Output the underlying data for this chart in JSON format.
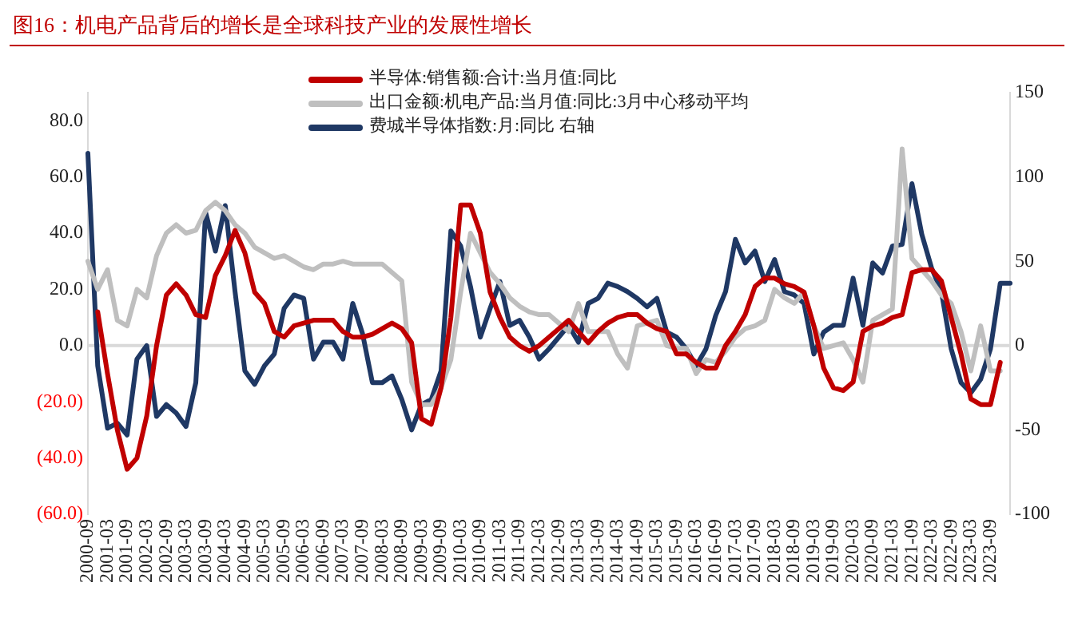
{
  "chart_data": {
    "type": "line",
    "title": "图16：机电产品背后的增长是全球科技产业的发展性增长",
    "categories": [
      "2000-09",
      null,
      "2001-03",
      null,
      "2001-09",
      null,
      "2002-03",
      null,
      "2002-09",
      null,
      "2003-03",
      null,
      "2003-09",
      null,
      "2004-03",
      null,
      "2004-09",
      null,
      "2005-03",
      null,
      "2005-09",
      null,
      "2006-03",
      null,
      "2006-09",
      null,
      "2007-03",
      null,
      "2007-09",
      null,
      "2008-03",
      null,
      "2008-09",
      null,
      "2009-03",
      null,
      "2009-09",
      null,
      "2010-03",
      null,
      "2010-09",
      null,
      "2011-03",
      null,
      "2011-09",
      null,
      "2012-03",
      null,
      "2012-09",
      null,
      "2013-03",
      null,
      "2013-09",
      null,
      "2014-03",
      null,
      "2014-09",
      null,
      "2015-03",
      null,
      "2015-09",
      null,
      "2016-03",
      null,
      "2016-09",
      null,
      "2017-03",
      null,
      "2017-09",
      null,
      "2018-03",
      null,
      "2018-09",
      null,
      "2019-03",
      null,
      "2019-09",
      null,
      "2020-03",
      null,
      "2020-09",
      null,
      "2021-03",
      null,
      "2021-09",
      null,
      "2022-03",
      null,
      "2022-09",
      null,
      "2023-03",
      null,
      "2023-09",
      null,
      null
    ],
    "series": [
      {
        "name": "半导体:销售额:合计:当月值:同比",
        "color": "#c00000",
        "values": [
          null,
          12,
          -10,
          -30,
          -44,
          -40,
          -25,
          0,
          18,
          22,
          18,
          11,
          10,
          25,
          32,
          41,
          33,
          19,
          15,
          5,
          3,
          7,
          8,
          9,
          9,
          9,
          5,
          3,
          3,
          4,
          6,
          8,
          6,
          1,
          -26,
          -28,
          -15,
          10,
          50,
          50,
          40,
          19,
          10,
          3,
          0,
          -2,
          0,
          3,
          6,
          9,
          5,
          1,
          5,
          8,
          10,
          11,
          11,
          8,
          6,
          5,
          -3,
          -3,
          -6,
          -8,
          -8,
          0,
          5,
          11,
          21,
          24,
          24,
          22,
          21,
          19,
          7,
          -8,
          -15,
          -16,
          -13,
          5,
          7,
          8,
          10,
          11,
          26,
          27,
          27,
          23,
          10,
          -3,
          -19,
          -21,
          -21,
          -6,
          null
        ]
      },
      {
        "name": "出口金额:机电产品:当月值:同比:3月中心移动平均",
        "color": "#bfbfbf",
        "values": [
          30,
          20,
          27,
          9,
          7,
          20,
          17,
          32,
          40,
          43,
          40,
          41,
          48,
          51,
          48,
          43,
          40,
          35,
          33,
          31,
          32,
          30,
          28,
          27,
          29,
          29,
          30,
          29,
          29,
          29,
          29,
          26,
          23,
          -13,
          -21,
          -21,
          -15,
          -5,
          19,
          40,
          33,
          26,
          22,
          17,
          14,
          12,
          11,
          11,
          8,
          5,
          15,
          5,
          5,
          5,
          -3,
          -8,
          7,
          8,
          9,
          0,
          -1,
          -1,
          -10,
          -5,
          -6,
          -2,
          3,
          6,
          7,
          9,
          20,
          17,
          15,
          19,
          7,
          -1,
          0,
          1,
          -5,
          -13,
          9,
          11,
          13,
          70,
          31,
          27,
          23,
          18,
          15,
          5,
          -9,
          7,
          -9,
          -9,
          null
        ]
      },
      {
        "name": "费城半导体指数:月:同比 右轴",
        "color": "#1f3864",
        "axis": "y2",
        "values": [
          114,
          -12,
          -49,
          -46,
          -53,
          -8,
          0,
          -42,
          -35,
          -40,
          -48,
          -22,
          79,
          56,
          83,
          32,
          -15,
          -23,
          -12,
          -5,
          22,
          30,
          28,
          -8,
          2,
          2,
          -8,
          25,
          7,
          -22,
          -22,
          -18,
          -32,
          -50,
          -35,
          -32,
          -15,
          68,
          59,
          35,
          5,
          22,
          38,
          12,
          15,
          5,
          -8,
          -2,
          5,
          12,
          2,
          25,
          28,
          37,
          35,
          32,
          28,
          23,
          28,
          8,
          5,
          -2,
          -12,
          -2,
          18,
          32,
          63,
          49,
          56,
          38,
          51,
          32,
          30,
          25,
          -5,
          8,
          12,
          12,
          40,
          12,
          49,
          43,
          59,
          60,
          96,
          66,
          46,
          32,
          -2,
          -22,
          -28,
          -20,
          -2,
          37,
          37
        ]
      }
    ],
    "ylim": [
      -60,
      90
    ],
    "yticks": [
      {
        "value": -60,
        "label": "(60.0)"
      },
      {
        "value": -40,
        "label": "(40.0)"
      },
      {
        "value": -20,
        "label": "(20.0)"
      },
      {
        "value": 0,
        "label": "0.0"
      },
      {
        "value": 20,
        "label": "20.0"
      },
      {
        "value": 40,
        "label": "40.0"
      },
      {
        "value": 60,
        "label": "60.0"
      },
      {
        "value": 80,
        "label": "80.0"
      }
    ],
    "y2lim": [
      -100,
      150
    ],
    "y2ticks": [
      -100,
      -50,
      0,
      50,
      100,
      150
    ],
    "ref_lines": [
      {
        "axis": "y",
        "value": 0,
        "color": "#d9d9d9"
      }
    ],
    "grid": false,
    "legend": "top",
    "marker": "none",
    "line_style": "solid"
  }
}
